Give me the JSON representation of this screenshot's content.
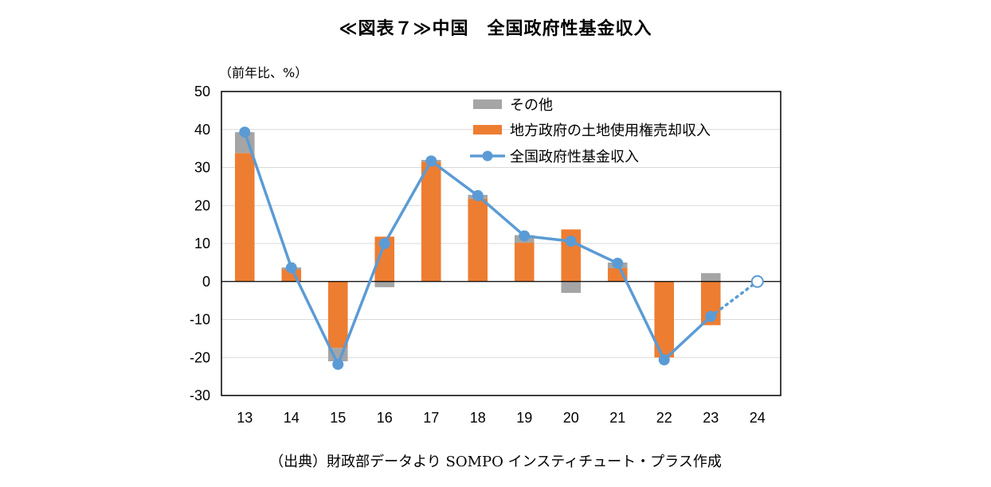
{
  "title": "≪図表７≫中国　全国政府性基金収入",
  "unit_label": "（前年比、%）",
  "source": "（出典）財政部データより SOMPO インスティチュート・プラス作成",
  "chart_data": {
    "type": "bar+line",
    "categories": [
      "13",
      "14",
      "15",
      "16",
      "17",
      "18",
      "19",
      "20",
      "21",
      "22",
      "23",
      "24"
    ],
    "ylim": [
      -30,
      50
    ],
    "yticks": [
      50,
      40,
      30,
      20,
      10,
      0,
      -10,
      -20,
      -30
    ],
    "grid": true,
    "legend_position": "top-right",
    "series": [
      {
        "name": "その他",
        "kind": "stacked-bar",
        "color": "#a5a5a5",
        "values": [
          5.5,
          0.5,
          -3.5,
          -1.5,
          0.5,
          1.0,
          2.0,
          -3.0,
          1.5,
          0,
          2.2,
          null
        ]
      },
      {
        "name": "地方政府の土地使用権売却収入",
        "kind": "stacked-bar",
        "color": "#ed7d31",
        "values": [
          33.8,
          3.2,
          -17.5,
          11.8,
          31.5,
          21.8,
          10.2,
          13.7,
          3.5,
          -20.0,
          -11.5,
          null
        ]
      },
      {
        "name": "全国政府性基金収入",
        "kind": "line",
        "color": "#5b9bd5",
        "values": [
          39.3,
          3.6,
          -21.8,
          10.0,
          31.7,
          22.6,
          12.0,
          10.6,
          4.8,
          -20.6,
          -9.2,
          0.0
        ],
        "projected_from_index": 10
      }
    ]
  },
  "colors": {
    "grid": "#d9d9d9",
    "axis": "#000000"
  }
}
